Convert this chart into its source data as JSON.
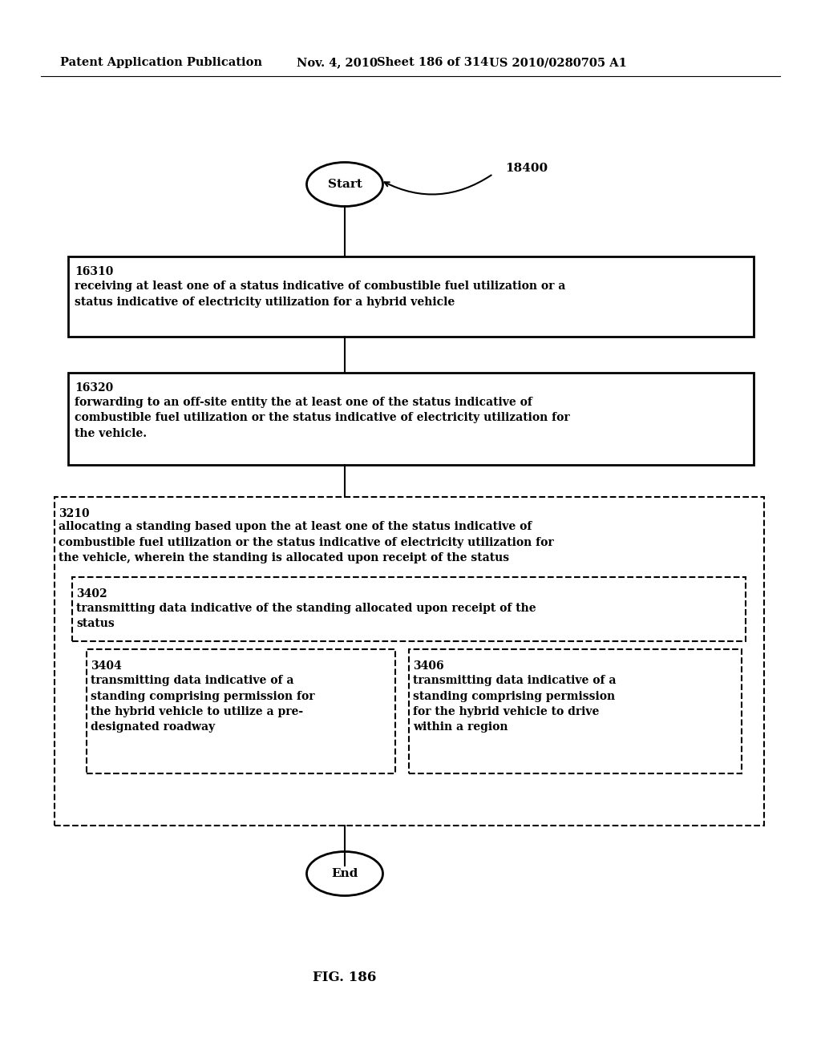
{
  "bg_color": "#ffffff",
  "header_text": "Patent Application Publication",
  "header_date": "Nov. 4, 2010",
  "header_sheet": "Sheet 186 of 314",
  "header_patent": "US 2010/0280705 A1",
  "fig_label": "FIG. 186",
  "label_18400": "18400",
  "start_label": "Start",
  "end_label": "End",
  "box1_id": "16310",
  "box1_text": "receiving at least one of a status indicative of combustible fuel utilization or a\nstatus indicative of electricity utilization for a hybrid vehicle",
  "box2_id": "16320",
  "box2_text": "forwarding to an off-site entity the at least one of the status indicative of\ncombustible fuel utilization or the status indicative of electricity utilization for\nthe vehicle.",
  "dbox_outer_id": "3210",
  "dbox_outer_text": "allocating a standing based upon the at least one of the status indicative of\ncombustible fuel utilization or the status indicative of electricity utilization for\nthe vehicle, wherein the standing is allocated upon receipt of the status",
  "dbox_mid_id": "3402",
  "dbox_mid_text": "transmitting data indicative of the standing allocated upon receipt of the\nstatus",
  "dbox_left_id": "3404",
  "dbox_left_text": "transmitting data indicative of a\nstanding comprising permission for\nthe hybrid vehicle to utilize a pre-\ndesignated roadway",
  "dbox_right_id": "3406",
  "dbox_right_text": "transmitting data indicative of a\nstanding comprising permission\nfor the hybrid vehicle to drive\nwithin a region"
}
